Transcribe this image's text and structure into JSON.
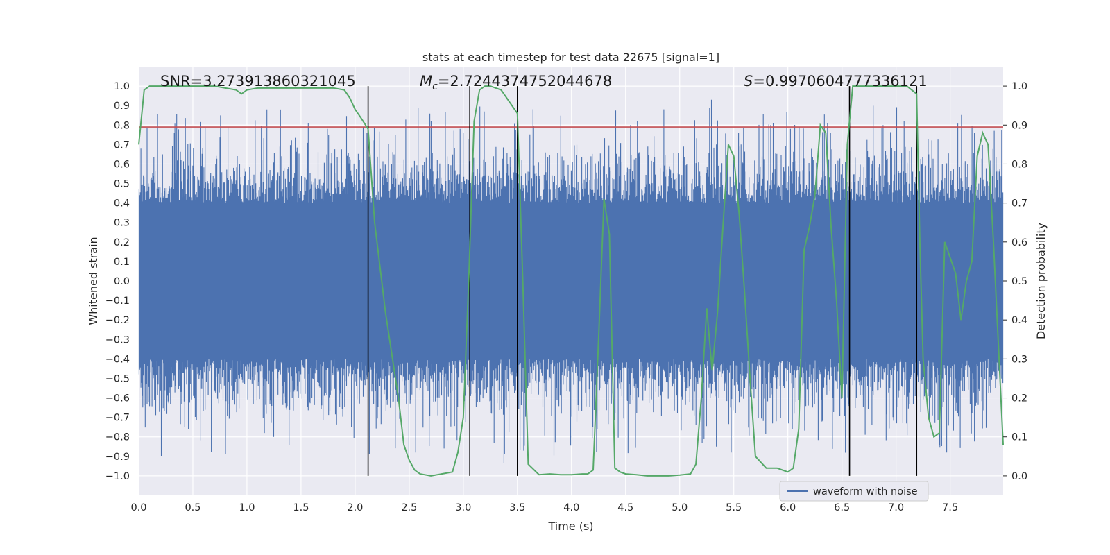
{
  "chart_data": {
    "type": "line",
    "title": "stats at each timestep for test data 22675 [signal=1]",
    "xlabel": "Time (s)",
    "ylabel": "Whitened strain",
    "y2label": "Detection probability",
    "xlim": [
      0,
      7.99
    ],
    "ylim": [
      -1.1,
      1.1
    ],
    "y2lim": [
      -0.05,
      1.05
    ],
    "xticks": [
      "0.0",
      "0.5",
      "1.0",
      "1.5",
      "2.0",
      "2.5",
      "3.0",
      "3.5",
      "4.0",
      "4.5",
      "5.0",
      "5.5",
      "6.0",
      "6.5",
      "7.0",
      "7.5"
    ],
    "yticks": [
      "1.0",
      "0.9",
      "0.8",
      "0.7",
      "0.6",
      "0.5",
      "0.4",
      "0.3",
      "0.2",
      "0.1",
      "0.0",
      "-0.1",
      "-0.2",
      "-0.3",
      "-0.4",
      "-0.5",
      "-0.6",
      "-0.7",
      "-0.8",
      "-0.9",
      "-1.0"
    ],
    "y2ticks": [
      "1.0",
      "0.9",
      "0.8",
      "0.7",
      "0.6",
      "0.5",
      "0.4",
      "0.3",
      "0.2",
      "0.1",
      "0.0"
    ],
    "grid": true,
    "legend": {
      "position": "bottom-right",
      "entries": [
        "waveform with noise"
      ]
    },
    "threshold": 0.79,
    "vlines": [
      2.12,
      3.06,
      3.5,
      6.57,
      7.19
    ],
    "annotations": {
      "snr": "SNR=3.273913860321045",
      "mc_symbol": "M",
      "mc_sub": "c",
      "mc_value": "=2.7244374752044678",
      "s_symbol": "S",
      "s_value": "=0.9970604777336121"
    },
    "series": [
      {
        "name": "waveform with noise",
        "color": "#4c72b0",
        "kind": "noise",
        "typical_amplitude": 0.4,
        "spike_range": [
          -1.0,
          1.0
        ]
      },
      {
        "name": "detection probability",
        "color": "#55a868",
        "axis": "right",
        "x": [
          0.0,
          0.05,
          0.1,
          0.2,
          0.3,
          0.5,
          0.7,
          0.8,
          0.9,
          0.95,
          1.0,
          1.1,
          1.3,
          1.5,
          1.7,
          1.8,
          1.9,
          1.95,
          2.0,
          2.05,
          2.12,
          2.18,
          2.28,
          2.4,
          2.45,
          2.5,
          2.55,
          2.6,
          2.7,
          2.8,
          2.9,
          2.95,
          3.0,
          3.05,
          3.1,
          3.15,
          3.2,
          3.25,
          3.35,
          3.4,
          3.45,
          3.5,
          3.55,
          3.6,
          3.7,
          3.8,
          3.9,
          4.0,
          4.1,
          4.15,
          4.2,
          4.25,
          4.3,
          4.35,
          4.4,
          4.45,
          4.5,
          4.6,
          4.7,
          4.8,
          4.9,
          5.0,
          5.1,
          5.15,
          5.2,
          5.25,
          5.3,
          5.35,
          5.4,
          5.45,
          5.5,
          5.55,
          5.6,
          5.65,
          5.7,
          5.8,
          5.9,
          5.95,
          6.0,
          6.05,
          6.1,
          6.15,
          6.2,
          6.25,
          6.3,
          6.35,
          6.4,
          6.45,
          6.5,
          6.55,
          6.6,
          6.7,
          6.8,
          6.9,
          7.0,
          7.1,
          7.19,
          7.22,
          7.25,
          7.3,
          7.35,
          7.4,
          7.45,
          7.55,
          7.6,
          7.65,
          7.7,
          7.75,
          7.8,
          7.85,
          7.9,
          7.99
        ],
        "y": [
          0.85,
          0.99,
          1.0,
          1.0,
          1.0,
          1.0,
          1.0,
          0.995,
          0.99,
          0.98,
          0.99,
          0.995,
          0.995,
          0.995,
          0.995,
          0.995,
          0.99,
          0.97,
          0.94,
          0.92,
          0.89,
          0.65,
          0.42,
          0.2,
          0.08,
          0.04,
          0.015,
          0.005,
          0.0,
          0.005,
          0.01,
          0.06,
          0.15,
          0.5,
          0.91,
          0.99,
          1.0,
          1.0,
          0.99,
          0.97,
          0.95,
          0.93,
          0.5,
          0.03,
          0.003,
          0.005,
          0.003,
          0.003,
          0.005,
          0.005,
          0.015,
          0.35,
          0.71,
          0.62,
          0.02,
          0.01,
          0.005,
          0.003,
          0.0,
          0.0,
          0.0,
          0.002,
          0.005,
          0.03,
          0.2,
          0.43,
          0.27,
          0.42,
          0.64,
          0.85,
          0.82,
          0.67,
          0.47,
          0.25,
          0.05,
          0.02,
          0.02,
          0.015,
          0.01,
          0.02,
          0.12,
          0.58,
          0.64,
          0.72,
          0.9,
          0.88,
          0.64,
          0.45,
          0.2,
          0.85,
          1.0,
          1.0,
          1.0,
          1.0,
          1.0,
          1.0,
          0.98,
          0.6,
          0.3,
          0.15,
          0.1,
          0.11,
          0.6,
          0.52,
          0.4,
          0.5,
          0.55,
          0.82,
          0.88,
          0.85,
          0.6,
          0.08
        ]
      }
    ]
  }
}
